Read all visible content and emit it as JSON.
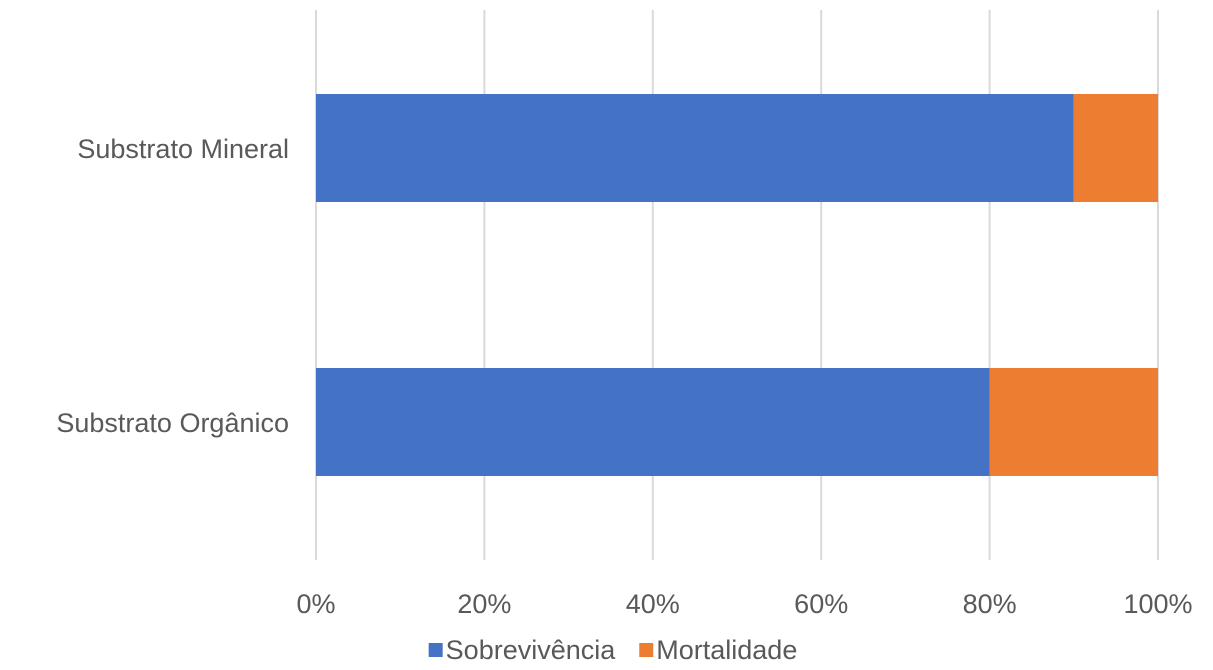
{
  "chart_data": {
    "type": "bar",
    "orientation": "horizontal",
    "stacked": "percent",
    "categories": [
      "Substrato Mineral",
      "Substrato Orgânico"
    ],
    "series": [
      {
        "name": "Sobrevivência",
        "color": "#4472C4",
        "values": [
          90,
          80
        ]
      },
      {
        "name": "Mortalidade",
        "color": "#ED7D31",
        "values": [
          10,
          20
        ]
      }
    ],
    "xlim": [
      0,
      100
    ],
    "x_ticks": [
      "0%",
      "20%",
      "40%",
      "60%",
      "80%",
      "100%"
    ],
    "grid": "vertical",
    "legend_position": "bottom"
  }
}
